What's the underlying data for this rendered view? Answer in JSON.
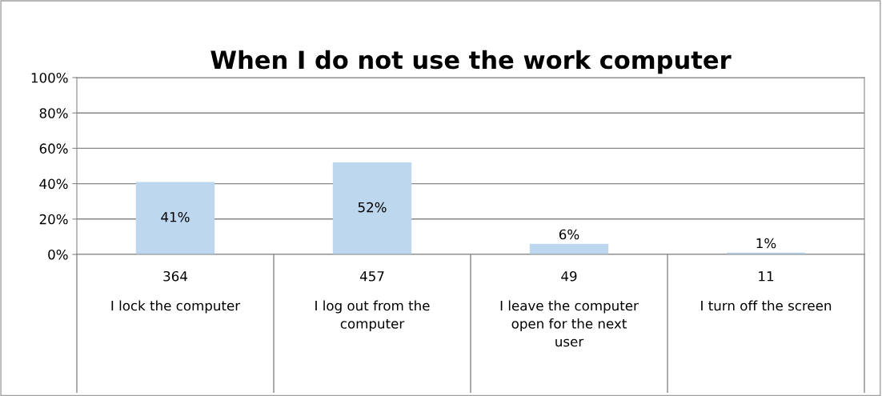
{
  "chart_data": {
    "type": "bar",
    "title": "When I do not use the work computer",
    "categories": [
      "I lock the computer",
      "I log out from the\ncomputer",
      "I leave the computer\nopen for the next\nuser",
      "I turn off the screen"
    ],
    "values": [
      41,
      52,
      6,
      1
    ],
    "color": "#bdd7ee",
    "data_labels": true,
    "value_labels": [
      "41%",
      "52%",
      "6%",
      "1%"
    ],
    "annotations": [
      "364",
      "457",
      "49",
      "11"
    ],
    "ylim": [
      0,
      100
    ],
    "yticks": [
      {
        "value": 0,
        "label": "0%"
      },
      {
        "value": 20,
        "label": "20%"
      },
      {
        "value": 40,
        "label": "40%"
      },
      {
        "value": 60,
        "label": "60%"
      },
      {
        "value": 80,
        "label": "80%"
      },
      {
        "value": 100,
        "label": "100%"
      }
    ],
    "grid": "y"
  }
}
